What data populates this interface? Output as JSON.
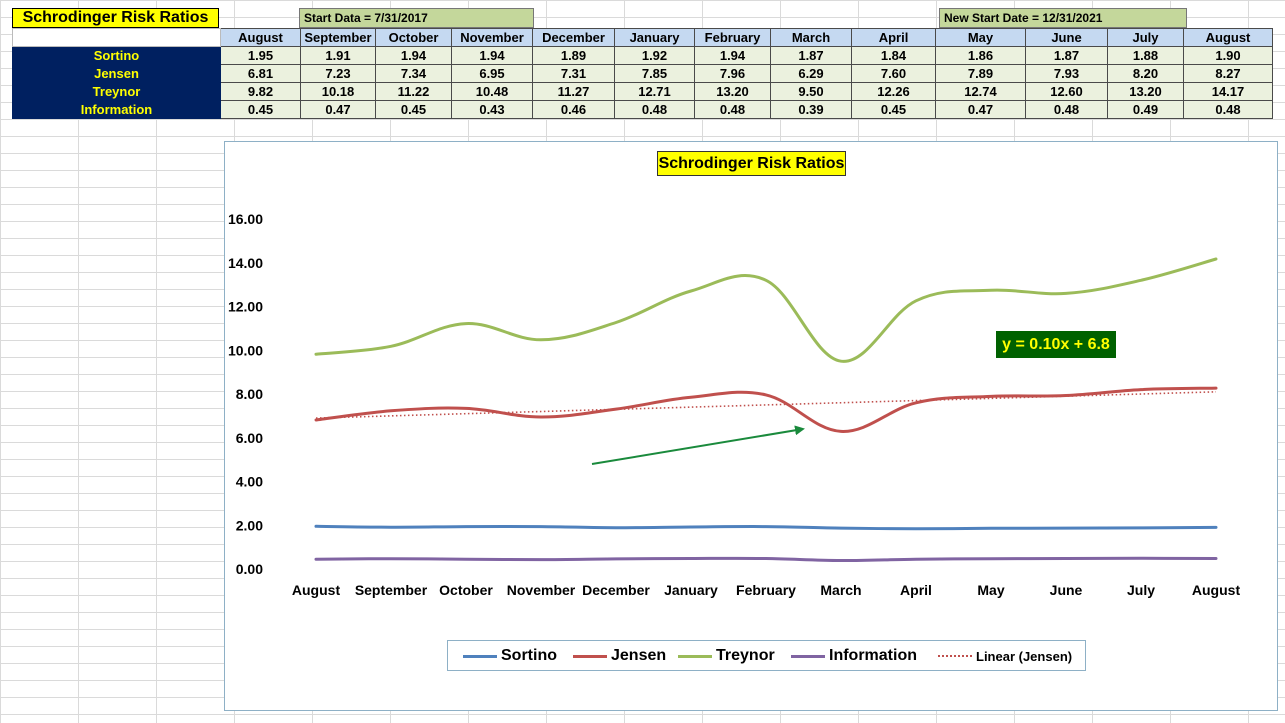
{
  "sheet": {
    "title": "Schrodinger Risk Ratios",
    "start_note": "Start Data = 7/31/2017",
    "new_start_note": "New Start Date = 12/31/2021",
    "months": [
      "August",
      "September",
      "October",
      "November",
      "December",
      "January",
      "February",
      "March",
      "April",
      "May",
      "June",
      "July",
      "August"
    ],
    "rows": [
      {
        "label": "Sortino",
        "values": [
          "1.95",
          "1.91",
          "1.94",
          "1.94",
          "1.89",
          "1.92",
          "1.94",
          "1.87",
          "1.84",
          "1.86",
          "1.87",
          "1.88",
          "1.90"
        ]
      },
      {
        "label": "Jensen",
        "values": [
          "6.81",
          "7.23",
          "7.34",
          "6.95",
          "7.31",
          "7.85",
          "7.96",
          "6.29",
          "7.60",
          "7.89",
          "7.93",
          "8.20",
          "8.27"
        ]
      },
      {
        "label": "Treynor",
        "values": [
          "9.82",
          "10.18",
          "11.22",
          "10.48",
          "11.27",
          "12.71",
          "13.20",
          "9.50",
          "12.26",
          "12.74",
          "12.60",
          "13.20",
          "14.17"
        ]
      },
      {
        "label": "Information",
        "values": [
          "0.45",
          "0.47",
          "0.45",
          "0.43",
          "0.46",
          "0.48",
          "0.48",
          "0.39",
          "0.45",
          "0.47",
          "0.48",
          "0.49",
          "0.48"
        ]
      }
    ]
  },
  "chart_data": {
    "type": "line",
    "title": "Schrodinger Risk Ratios",
    "categories": [
      "August",
      "September",
      "October",
      "November",
      "December",
      "January",
      "February",
      "March",
      "April",
      "May",
      "June",
      "July",
      "August"
    ],
    "ylim": [
      0,
      16
    ],
    "yticks": [
      "0.00",
      "2.00",
      "4.00",
      "6.00",
      "8.00",
      "10.00",
      "12.00",
      "14.00",
      "16.00"
    ],
    "grid": false,
    "legend_position": "bottom",
    "series": [
      {
        "name": "Sortino",
        "color": "#4f81bd",
        "values": [
          1.95,
          1.91,
          1.94,
          1.94,
          1.89,
          1.92,
          1.94,
          1.87,
          1.84,
          1.86,
          1.87,
          1.88,
          1.9
        ]
      },
      {
        "name": "Jensen",
        "color": "#c0504d",
        "values": [
          6.81,
          7.23,
          7.34,
          6.95,
          7.31,
          7.85,
          7.96,
          6.29,
          7.6,
          7.89,
          7.93,
          8.2,
          8.27
        ]
      },
      {
        "name": "Treynor",
        "color": "#9bbb59",
        "values": [
          9.82,
          10.18,
          11.22,
          10.48,
          11.27,
          12.71,
          13.2,
          9.5,
          12.26,
          12.74,
          12.6,
          13.2,
          14.17
        ]
      },
      {
        "name": "Information",
        "color": "#8064a2",
        "values": [
          0.45,
          0.47,
          0.45,
          0.43,
          0.46,
          0.48,
          0.48,
          0.39,
          0.45,
          0.47,
          0.48,
          0.49,
          0.48
        ]
      }
    ],
    "trendline": {
      "name": "Linear (Jensen)",
      "color": "#c0504d",
      "style": "dotted",
      "equation": "y = 0.10x + 6.8",
      "slope": 0.1,
      "intercept": 6.8
    },
    "equation_label_color": "#006100",
    "equation_text_color": "#ffff00",
    "arrow_color": "#1a8a3c"
  }
}
